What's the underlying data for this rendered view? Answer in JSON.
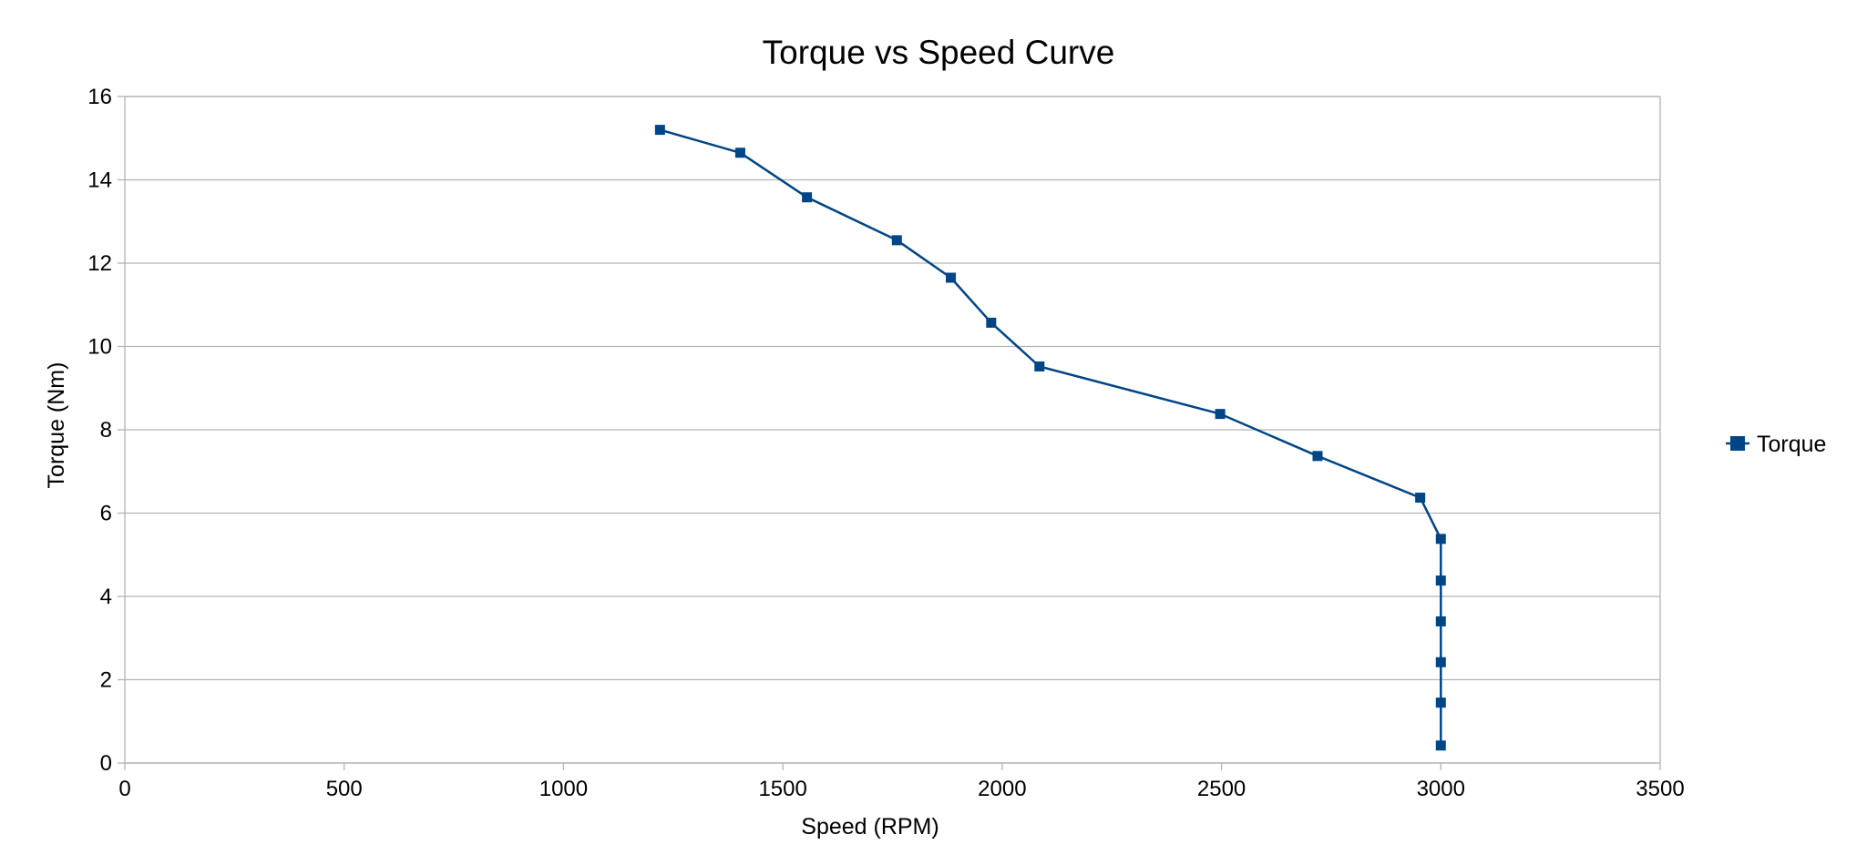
{
  "chart_data": {
    "type": "line",
    "title": "Torque vs Speed Curve",
    "xlabel": "Speed (RPM)",
    "ylabel": "Torque (Nm)",
    "xlim": [
      0,
      3500
    ],
    "ylim": [
      0,
      16
    ],
    "x_ticks": [
      "0",
      "500",
      "1000",
      "1500",
      "2000",
      "2500",
      "3000",
      "3500"
    ],
    "y_ticks": [
      "0",
      "2",
      "4",
      "6",
      "8",
      "10",
      "12",
      "14",
      "16"
    ],
    "grid": "horizontal",
    "legend_position": "right",
    "colors": {
      "series": "#004586",
      "grid": "#b3b3b3",
      "frame": "#b3b3b3"
    },
    "series": [
      {
        "name": "Torque",
        "marker": "square",
        "points": [
          [
            1220,
            15.2
          ],
          [
            1403,
            14.65
          ],
          [
            1555,
            13.58
          ],
          [
            1760,
            12.55
          ],
          [
            1883,
            11.65
          ],
          [
            1975,
            10.57
          ],
          [
            2085,
            9.52
          ],
          [
            2497,
            8.38
          ],
          [
            2719,
            7.37
          ],
          [
            2953,
            6.37
          ],
          [
            3000,
            5.38
          ],
          [
            3000,
            4.38
          ],
          [
            3000,
            3.4
          ],
          [
            3000,
            2.42
          ],
          [
            3000,
            1.45
          ],
          [
            3000,
            0.42
          ]
        ]
      }
    ]
  }
}
